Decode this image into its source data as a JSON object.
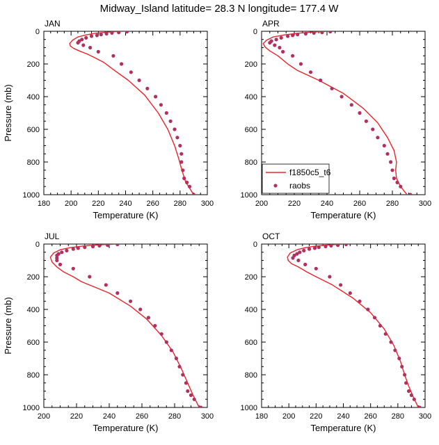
{
  "title": "Midway_Island  latitude= 28.3 N longitude= 177.4 W",
  "colors": {
    "model_line": "#e8232a",
    "obs_marker": "#b03060",
    "axes": "#000000"
  },
  "legend": {
    "model_label": "f1850c5_t6",
    "obs_label": "raobs"
  },
  "chart_data": [
    {
      "type": "line",
      "panel": "JAN",
      "xlabel": "Temperature (K)",
      "ylabel": "Pressure (mb)",
      "xlim": [
        180,
        300
      ],
      "ylim": [
        1000,
        0
      ],
      "xticks": [
        "180",
        "200",
        "220",
        "240",
        "260",
        "280",
        "300"
      ],
      "yticks": [
        "0",
        "200",
        "400",
        "600",
        "800",
        "1000"
      ],
      "series": [
        {
          "name": "f1850c5_t6",
          "kind": "line",
          "x": [
            237,
            227,
            218,
            211,
            205,
            201,
            199,
            199.5,
            202,
            206,
            212,
            217,
            224,
            232,
            242,
            254,
            264,
            271,
            276,
            279,
            281,
            282.5,
            284,
            287,
            290
          ],
          "y": [
            0,
            5,
            12,
            22,
            35,
            55,
            75,
            90,
            105,
            120,
            140,
            160,
            190,
            240,
            300,
            390,
            500,
            600,
            700,
            780,
            840,
            880,
            920,
            960,
            1000
          ]
        },
        {
          "name": "raobs",
          "kind": "scatter",
          "x": [
            241,
            235,
            230,
            226,
            222,
            219,
            215,
            211,
            208,
            206,
            205,
            209,
            214,
            220,
            231,
            237,
            244,
            250,
            256,
            262,
            266,
            270,
            273,
            276,
            278,
            280,
            281,
            281,
            282,
            283,
            285,
            287,
            290
          ],
          "y": [
            2,
            7,
            10,
            15,
            20,
            25,
            30,
            40,
            50,
            60,
            70,
            85,
            100,
            125,
            150,
            200,
            250,
            300,
            350,
            400,
            450,
            500,
            550,
            600,
            650,
            700,
            750,
            800,
            850,
            900,
            925,
            950,
            1000
          ]
        }
      ]
    },
    {
      "type": "line",
      "panel": "APR",
      "xlabel": "Temperature (K)",
      "ylabel": "",
      "xlim": [
        200,
        300
      ],
      "ylim": [
        1000,
        0
      ],
      "xticks": [
        "200",
        "220",
        "240",
        "260",
        "280",
        "300"
      ],
      "yticks": [
        "0",
        "200",
        "400",
        "600",
        "800",
        "1000"
      ],
      "series": [
        {
          "name": "f1850c5_t6",
          "kind": "line",
          "x": [
            240,
            231,
            222,
            214,
            207,
            203,
            201,
            202,
            205,
            210,
            216,
            222,
            235,
            250,
            262,
            271,
            277,
            281,
            282.5,
            282,
            282.5,
            285,
            289
          ],
          "y": [
            0,
            5,
            12,
            22,
            35,
            55,
            75,
            95,
            120,
            150,
            200,
            240,
            300,
            380,
            470,
            560,
            650,
            730,
            800,
            850,
            900,
            950,
            1000
          ]
        },
        {
          "name": "raobs",
          "kind": "scatter",
          "x": [
            242,
            237,
            232,
            227,
            222,
            219,
            216,
            212,
            209,
            206,
            205,
            208,
            211,
            213,
            219,
            224,
            230,
            236,
            243,
            249,
            255,
            260,
            264,
            268,
            271,
            275,
            277,
            279,
            280,
            281,
            283,
            285,
            291
          ],
          "y": [
            2,
            7,
            10,
            15,
            20,
            25,
            30,
            40,
            50,
            60,
            70,
            85,
            100,
            125,
            150,
            200,
            250,
            300,
            350,
            400,
            450,
            500,
            550,
            600,
            650,
            700,
            750,
            800,
            850,
            900,
            925,
            950,
            1000
          ]
        }
      ]
    },
    {
      "type": "line",
      "panel": "JUL",
      "xlabel": "Temperature (K)",
      "ylabel": "Pressure (mb)",
      "xlim": [
        200,
        300
      ],
      "ylim": [
        1000,
        0
      ],
      "xticks": [
        "200",
        "220",
        "240",
        "260",
        "280",
        "300"
      ],
      "yticks": [
        "0",
        "200",
        "400",
        "600",
        "800",
        "1000"
      ],
      "series": [
        {
          "name": "f1850c5_t6",
          "kind": "line",
          "x": [
            244,
            233,
            224,
            216,
            210,
            206,
            204,
            205,
            208,
            212,
            218,
            223,
            240,
            253,
            263,
            272,
            279,
            284,
            288,
            291,
            295
          ],
          "y": [
            0,
            5,
            12,
            22,
            35,
            55,
            80,
            110,
            140,
            170,
            200,
            230,
            300,
            380,
            460,
            560,
            660,
            760,
            850,
            920,
            1000
          ]
        },
        {
          "name": "raobs",
          "kind": "scatter",
          "x": [
            245,
            239,
            234,
            230,
            225,
            221,
            218,
            214,
            211,
            209,
            208,
            208,
            208,
            210,
            218,
            228,
            238,
            245,
            253,
            259,
            264,
            268,
            272,
            275,
            278,
            281,
            283,
            285,
            287,
            288,
            290,
            292,
            296
          ],
          "y": [
            2,
            7,
            10,
            15,
            20,
            25,
            30,
            40,
            50,
            60,
            70,
            85,
            100,
            125,
            150,
            200,
            250,
            300,
            350,
            400,
            450,
            500,
            550,
            600,
            650,
            700,
            750,
            800,
            850,
            900,
            925,
            950,
            1000
          ]
        }
      ]
    },
    {
      "type": "line",
      "panel": "OCT",
      "xlabel": "Temperature (K)",
      "ylabel": "",
      "xlim": [
        180,
        300
      ],
      "ylim": [
        1000,
        0
      ],
      "xticks": [
        "180",
        "200",
        "220",
        "240",
        "260",
        "280",
        "300"
      ],
      "yticks": [
        "0",
        "200",
        "400",
        "600",
        "800",
        "1000"
      ],
      "series": [
        {
          "name": "f1850c5_t6",
          "kind": "line",
          "x": [
            240,
            230,
            220,
            212,
            206,
            201,
            199,
            199.5,
            202,
            207,
            213,
            220,
            232,
            247,
            260,
            270,
            277,
            282,
            285,
            288,
            291,
            295
          ],
          "y": [
            0,
            5,
            12,
            22,
            35,
            55,
            80,
            100,
            120,
            140,
            170,
            200,
            250,
            330,
            420,
            520,
            620,
            720,
            800,
            870,
            930,
            1000
          ]
        },
        {
          "name": "raobs",
          "kind": "scatter",
          "x": [
            242,
            236,
            231,
            227,
            222,
            219,
            215,
            211,
            208,
            206,
            204,
            203,
            207,
            212,
            220,
            230,
            238,
            245,
            252,
            258,
            263,
            267,
            271,
            275,
            278,
            281,
            283,
            285,
            286,
            288,
            290,
            292,
            296
          ],
          "y": [
            2,
            7,
            10,
            15,
            20,
            25,
            30,
            40,
            50,
            60,
            70,
            85,
            100,
            125,
            150,
            200,
            250,
            300,
            350,
            400,
            450,
            500,
            550,
            600,
            650,
            700,
            750,
            800,
            850,
            900,
            925,
            950,
            1000
          ]
        }
      ]
    }
  ]
}
